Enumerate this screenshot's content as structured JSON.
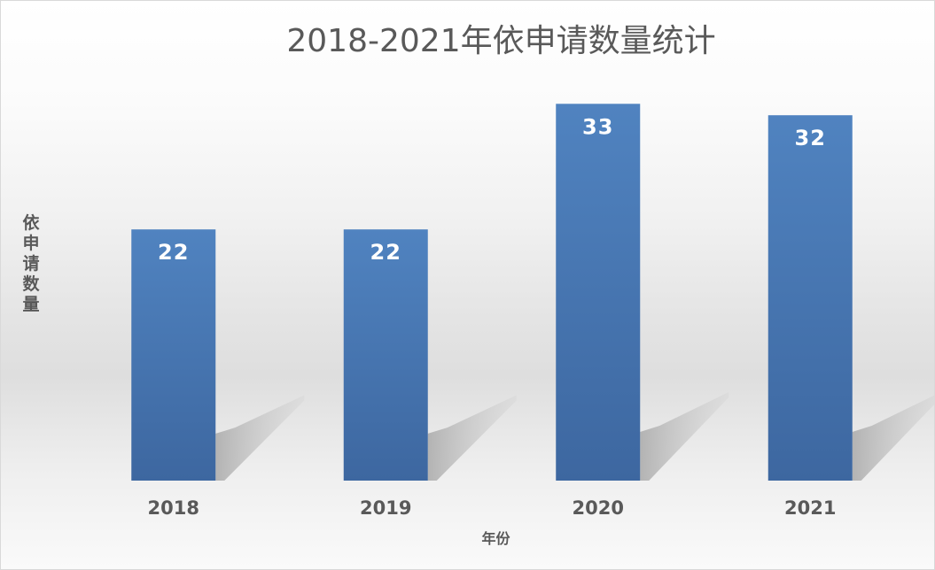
{
  "chart_data": {
    "type": "bar",
    "title": "2018-2021年依申请数量统计",
    "xlabel": "年份",
    "ylabel": "依申请数量",
    "categories": [
      "2018",
      "2019",
      "2020",
      "2021"
    ],
    "values": [
      22,
      22,
      33,
      32
    ],
    "ylim": [
      0,
      35
    ],
    "grid": false,
    "legend": false,
    "data_labels": true,
    "bar_color": "#4a78b5",
    "bar_color_dark": "#3d67a0",
    "label_color": "#ffffff"
  }
}
